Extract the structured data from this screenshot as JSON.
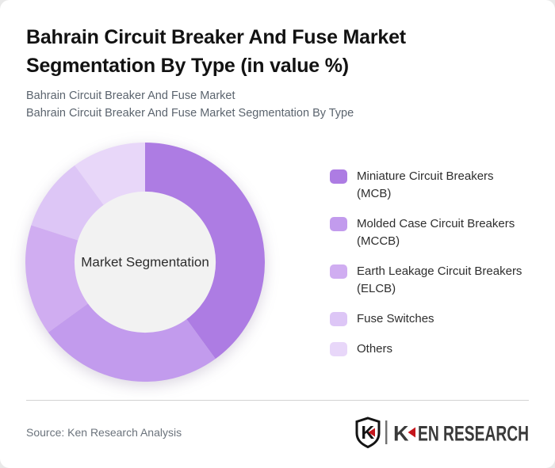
{
  "header": {
    "title": "Bahrain Circuit Breaker And Fuse Market Segmentation By Type (in value %)",
    "subtitle_line1": "Bahrain Circuit Breaker And Fuse Market",
    "subtitle_line2": "Bahrain Circuit Breaker And Fuse Market Segmentation By Type"
  },
  "chart_data": {
    "type": "pie",
    "subtype": "donut",
    "title": "Bahrain Circuit Breaker And Fuse Market Segmentation By Type (in value %)",
    "center_label": "Market Segmentation",
    "categories": [
      "Miniature Circuit Breakers (MCB)",
      "Molded Case Circuit Breakers (MCCB)",
      "Earth Leakage Circuit Breakers (ELCB)",
      "Fuse Switches",
      "Others"
    ],
    "values": [
      40,
      25,
      15,
      10,
      10
    ],
    "unit": "percent of market value",
    "colors": [
      "#ad7ce3",
      "#c29bed",
      "#d0adf1",
      "#ddc6f6",
      "#e8d7f9"
    ],
    "start_angle_deg": 0,
    "direction": "clockwise",
    "hole_ratio": 0.59,
    "hole_color": "#f2f2f2",
    "legend_position": "right"
  },
  "legend": {
    "items": [
      {
        "lines": [
          "Miniature Circuit Breakers",
          "(MCB)"
        ],
        "color": "#ad7ce3"
      },
      {
        "lines": [
          "Molded Case Circuit Breakers",
          "(MCCB)"
        ],
        "color": "#c29bed"
      },
      {
        "lines": [
          "Earth Leakage Circuit Breakers",
          "(ELCB)"
        ],
        "color": "#d0adf1"
      },
      {
        "lines": [
          "Fuse Switches"
        ],
        "color": "#ddc6f6"
      },
      {
        "lines": [
          "Others"
        ],
        "color": "#e8d7f9"
      }
    ]
  },
  "footer": {
    "source": "Source: Ken Research Analysis",
    "logo_shield_letter": "K",
    "logo_first_letter": "K",
    "logo_rest": "EN RESEARCH"
  },
  "colors": {
    "accent_red": "#c4161c",
    "divider": "#d2d2d2",
    "title_text": "#121212",
    "subtitle_text": "#5b646e",
    "center_text": "#2d2d2d"
  }
}
